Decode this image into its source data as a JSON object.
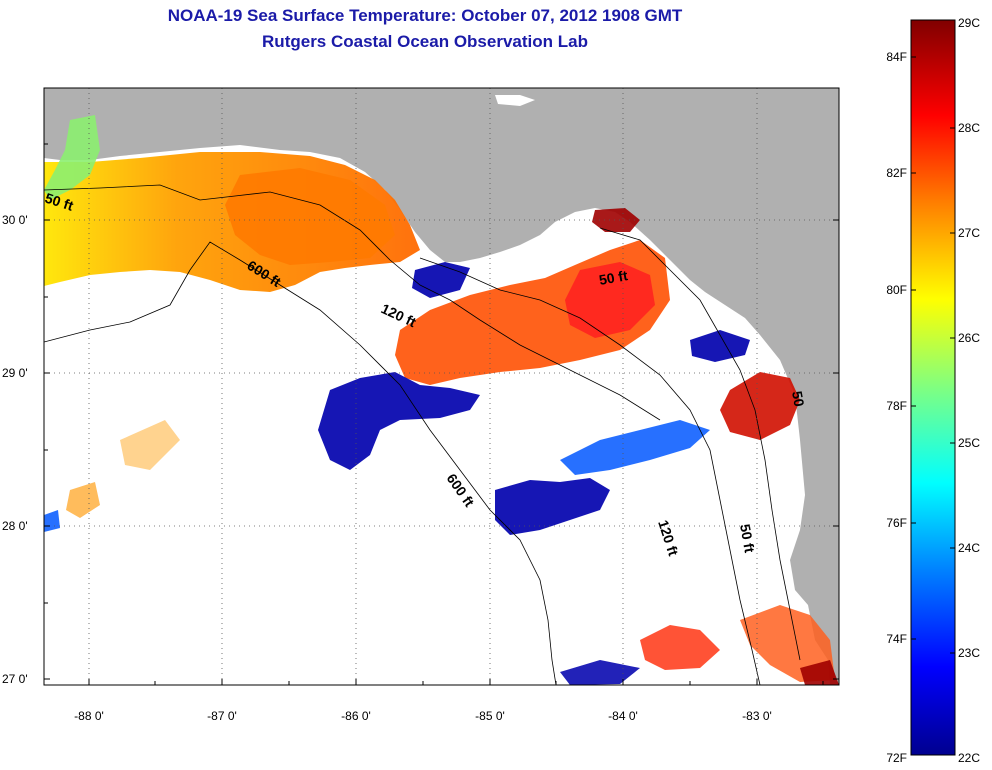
{
  "title": {
    "line1": "NOAA-19 Sea Surface Temperature:  October 07, 2012 1908 GMT",
    "line2": "Rutgers Coastal Ocean Observation Lab"
  },
  "axes": {
    "latitude_labels": [
      "30 0'",
      "29 0'",
      "28 0'",
      "27 0'"
    ],
    "longitude_labels": [
      "-88 0'",
      "-87 0'",
      "-86 0'",
      "-85 0'",
      "-84 0'",
      "-83 0'"
    ]
  },
  "contour_labels": [
    "50 ft",
    "600 ft",
    "120 ft",
    "50 ft",
    "600 ft",
    "120 ft",
    "50 ft",
    "50"
  ],
  "colorbar": {
    "celsius": [
      "29C",
      "28C",
      "27C",
      "26C",
      "25C",
      "24C",
      "23C",
      "22C"
    ],
    "fahrenheit": [
      "84F",
      "82F",
      "80F",
      "78F",
      "76F",
      "74F",
      "72F"
    ],
    "colors": [
      "#00008f",
      "#0000ff",
      "#0080ff",
      "#00ffff",
      "#80ff80",
      "#ffff00",
      "#ff8000",
      "#ff0000",
      "#800000"
    ]
  },
  "colors": {
    "land": "#b0b0b0",
    "title": "#1b1ba8"
  }
}
